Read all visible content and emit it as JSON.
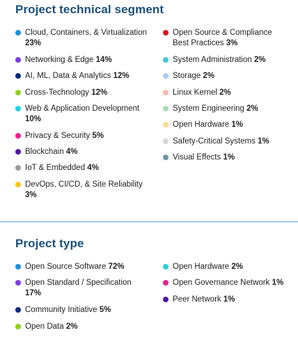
{
  "chart_data": [
    {
      "type": "table",
      "title": "Project technical segment",
      "unit": "%",
      "left_column": [
        {
          "name": "Cloud, Containers, & Virtualization",
          "value": 23,
          "color": "#1f8fd6"
        },
        {
          "name": "Networking & Edge",
          "value": 14,
          "color": "#7b3fe4"
        },
        {
          "name": "AI, ML, Data & Analytics",
          "value": 12,
          "color": "#0e2a78"
        },
        {
          "name": "Cross-Technology",
          "value": 12,
          "color": "#8fd11f"
        },
        {
          "name": "Web & Application Development",
          "value": 10,
          "color": "#22d3e0"
        },
        {
          "name": "Privacy & Security",
          "value": 5,
          "color": "#ec1c8e"
        },
        {
          "name": "Blockchain",
          "value": 4,
          "color": "#4b1a9e"
        },
        {
          "name": "IoT & Embedded",
          "value": 4,
          "color": "#9a9a9a"
        },
        {
          "name": "DevOps, CI/CD, & Site Reliability",
          "value": 3,
          "color": "#f5c518"
        }
      ],
      "right_column": [
        {
          "name": "Open Source & Compliance Best Practices",
          "value": 3,
          "color": "#e3161b"
        },
        {
          "name": "System Administration",
          "value": 2,
          "color": "#3fc9d6"
        },
        {
          "name": "Storage",
          "value": 2,
          "color": "#a9cdf2"
        },
        {
          "name": "Linux Kernel",
          "value": 2,
          "color": "#f7b9b2"
        },
        {
          "name": "System Engineering",
          "value": 2,
          "color": "#a8dfb4"
        },
        {
          "name": "Open Hardware",
          "value": 1,
          "color": "#f6e08a"
        },
        {
          "name": "Safety-Critical Systems",
          "value": 1,
          "color": "#d6d6d6"
        },
        {
          "name": "Visual Effects",
          "value": 1,
          "color": "#6f96a6"
        }
      ]
    },
    {
      "type": "table",
      "title": "Project type",
      "unit": "%",
      "left_column": [
        {
          "name": "Open Source Software",
          "value": 72,
          "color": "#1f8fd6"
        },
        {
          "name": "Open Standard / Specification",
          "value": 17,
          "color": "#7b3fe4"
        },
        {
          "name": "Community Initiative",
          "value": 5,
          "color": "#0e2a78"
        },
        {
          "name": "Open Data",
          "value": 2,
          "color": "#8fd11f"
        }
      ],
      "right_column": [
        {
          "name": "Open Hardware",
          "value": 2,
          "color": "#22d3e0"
        },
        {
          "name": "Open Governance Network",
          "value": 1,
          "color": "#ec1c8e"
        },
        {
          "name": "Peer Network",
          "value": 1,
          "color": "#4b1a9e"
        }
      ]
    }
  ]
}
